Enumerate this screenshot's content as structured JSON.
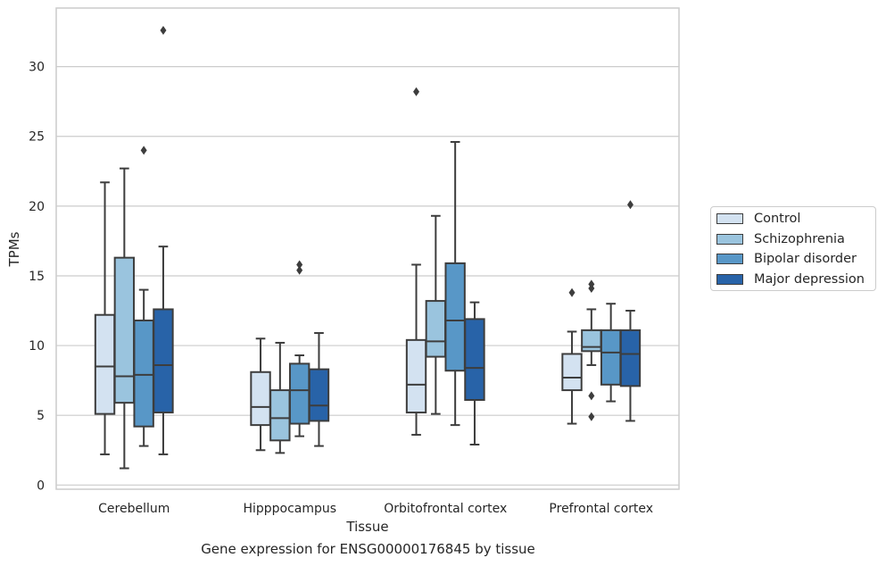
{
  "chart_data": {
    "type": "box",
    "title": "",
    "caption": "Gene expression for ENSG00000176845 by tissue",
    "xlabel": "Tissue",
    "ylabel": "TPMs",
    "ylim": [
      -0.3,
      34.2
    ],
    "yticks": [
      0,
      5,
      10,
      15,
      20,
      25,
      30
    ],
    "grid": true,
    "legend_position": "right",
    "categories": [
      "Cerebellum",
      "Hipppocampus",
      "Orbitofrontal cortex",
      "Prefrontal cortex"
    ],
    "series": [
      {
        "name": "Control",
        "color": "#d3e2f1",
        "boxes": [
          {
            "whisker_low": 2.2,
            "q1": 5.1,
            "median": 8.5,
            "q3": 12.2,
            "whisker_high": 21.7,
            "outliers": []
          },
          {
            "whisker_low": 2.5,
            "q1": 4.3,
            "median": 5.6,
            "q3": 8.1,
            "whisker_high": 10.5,
            "outliers": []
          },
          {
            "whisker_low": 3.6,
            "q1": 5.2,
            "median": 7.2,
            "q3": 10.4,
            "whisker_high": 15.8,
            "outliers": [
              28.2
            ]
          },
          {
            "whisker_low": 4.4,
            "q1": 6.8,
            "median": 7.7,
            "q3": 9.4,
            "whisker_high": 11.0,
            "outliers": [
              13.8
            ]
          }
        ]
      },
      {
        "name": "Schizophrenia",
        "color": "#9ac4de",
        "boxes": [
          {
            "whisker_low": 1.2,
            "q1": 5.9,
            "median": 7.8,
            "q3": 16.3,
            "whisker_high": 22.7,
            "outliers": []
          },
          {
            "whisker_low": 2.3,
            "q1": 3.2,
            "median": 4.8,
            "q3": 6.8,
            "whisker_high": 10.2,
            "outliers": []
          },
          {
            "whisker_low": 5.1,
            "q1": 9.2,
            "median": 10.3,
            "q3": 13.2,
            "whisker_high": 19.3,
            "outliers": []
          },
          {
            "whisker_low": 8.6,
            "q1": 9.6,
            "median": 9.9,
            "q3": 11.1,
            "whisker_high": 12.6,
            "outliers": [
              6.4,
              4.9,
              14.1,
              14.4
            ]
          }
        ]
      },
      {
        "name": "Bipolar disorder",
        "color": "#5897c7",
        "boxes": [
          {
            "whisker_low": 2.8,
            "q1": 4.2,
            "median": 7.9,
            "q3": 11.8,
            "whisker_high": 14.0,
            "outliers": [
              24.0
            ]
          },
          {
            "whisker_low": 3.5,
            "q1": 4.4,
            "median": 6.8,
            "q3": 8.7,
            "whisker_high": 9.3,
            "outliers": [
              15.4,
              15.8
            ]
          },
          {
            "whisker_low": 4.3,
            "q1": 8.2,
            "median": 11.8,
            "q3": 15.9,
            "whisker_high": 24.6,
            "outliers": []
          },
          {
            "whisker_low": 6.0,
            "q1": 7.2,
            "median": 9.5,
            "q3": 11.1,
            "whisker_high": 13.0,
            "outliers": []
          }
        ]
      },
      {
        "name": "Major depression",
        "color": "#2863a8",
        "boxes": [
          {
            "whisker_low": 2.2,
            "q1": 5.2,
            "median": 8.6,
            "q3": 12.6,
            "whisker_high": 17.1,
            "outliers": [
              32.6
            ]
          },
          {
            "whisker_low": 2.8,
            "q1": 4.6,
            "median": 5.7,
            "q3": 8.3,
            "whisker_high": 10.9,
            "outliers": []
          },
          {
            "whisker_low": 2.9,
            "q1": 6.1,
            "median": 8.4,
            "q3": 11.9,
            "whisker_high": 13.1,
            "outliers": []
          },
          {
            "whisker_low": 4.6,
            "q1": 7.1,
            "median": 9.4,
            "q3": 11.1,
            "whisker_high": 12.5,
            "outliers": [
              20.1
            ]
          }
        ]
      }
    ]
  }
}
